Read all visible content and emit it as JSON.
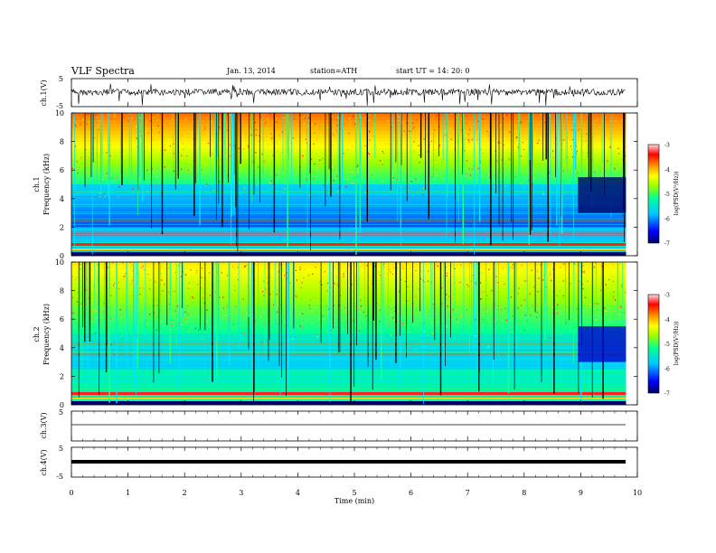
{
  "header": {
    "title": "VLF  Spectra",
    "date": "Jan.  13,  2014",
    "station": "station=ATH",
    "start": "start  UT  =    14: 20: 0"
  },
  "chart_data": [
    {
      "type": "line",
      "panel": "ch1-waveform",
      "ylabel": "ch.1(V)",
      "ylim": [
        -5,
        5
      ],
      "yticks": [
        "5",
        "-5"
      ],
      "xlim": [
        0,
        10
      ],
      "description_values": "noisy signal around 0 V with spikes reaching about -5..+2 V",
      "x": [
        0,
        9.8
      ]
    },
    {
      "type": "heatmap",
      "panel": "ch1-spectrogram",
      "ylabel_channel": "ch.1",
      "ylabel": "Frequency  (kHz)",
      "ylim": [
        0,
        10
      ],
      "yticks": [
        "0",
        "2",
        "4",
        "6",
        "8",
        "10"
      ],
      "xlim": [
        0,
        10
      ],
      "data_extent_x": [
        0,
        9.8
      ],
      "colorbar": {
        "label": "log(PSD(V²/Hz))",
        "range": [
          -7,
          -3
        ],
        "ticks": [
          "-3",
          "-4",
          "-5",
          "-6",
          "-7"
        ],
        "colors": [
          "#000066",
          "#0000ff",
          "#00c8ff",
          "#00ff99",
          "#99ff00",
          "#ffff00",
          "#ff9900",
          "#ff0000",
          "#ffffff"
        ]
      }
    },
    {
      "type": "heatmap",
      "panel": "ch2-spectrogram",
      "ylabel_channel": "ch.2",
      "ylabel": "Frequency  (kHz)",
      "ylim": [
        0,
        10
      ],
      "yticks": [
        "0",
        "2",
        "4",
        "6",
        "8",
        "10"
      ],
      "xlim": [
        0,
        10
      ],
      "data_extent_x": [
        0,
        9.8
      ],
      "colorbar": {
        "label": "log(PSD(V²/Hz))",
        "range": [
          -7,
          -3
        ],
        "ticks": [
          "-3",
          "-4",
          "-5",
          "-6",
          "-7"
        ]
      }
    },
    {
      "type": "line",
      "panel": "ch3-waveform",
      "ylabel": "ch.3(V)",
      "ylim": [
        -5,
        5
      ],
      "yticks": [
        "5"
      ],
      "x": [
        0,
        9.8
      ],
      "y_level": 0
    },
    {
      "type": "line",
      "panel": "ch4-waveform",
      "ylabel": "ch.4(V)",
      "ylim": [
        -5,
        5
      ],
      "yticks": [
        "5",
        "-5"
      ],
      "x": [
        0,
        9.8
      ],
      "y_level": 0,
      "xlabel": "Time  (min)",
      "xticks": [
        "0",
        "1",
        "2",
        "3",
        "4",
        "5",
        "6",
        "7",
        "8",
        "9",
        "10"
      ]
    }
  ]
}
